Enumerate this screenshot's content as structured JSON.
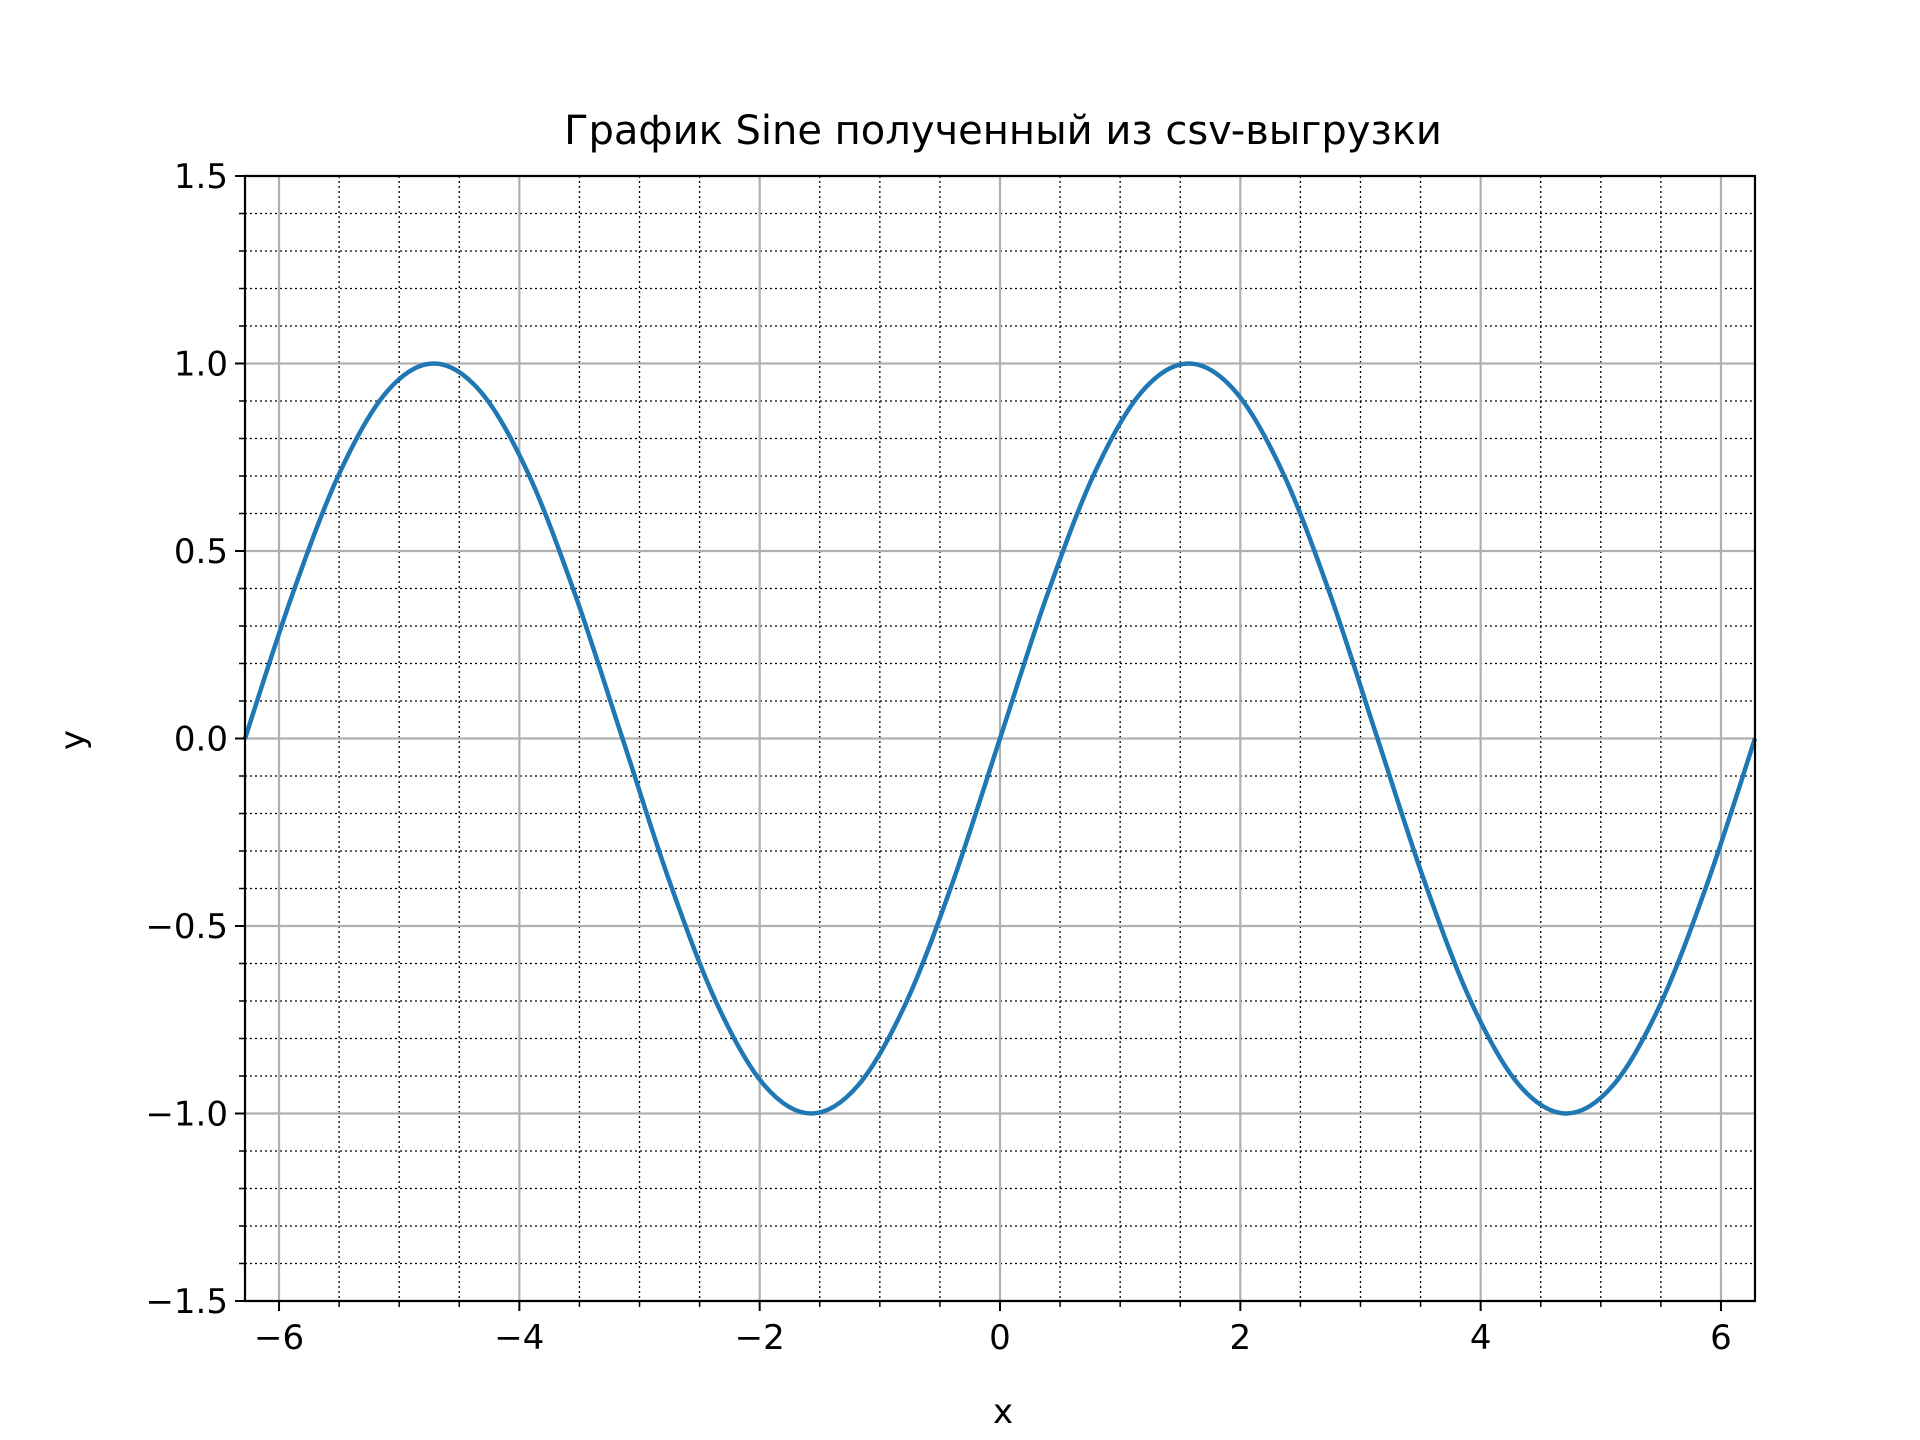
{
  "chart_data": {
    "type": "line",
    "title": "График Sine полученный из csv-выгрузки",
    "xlabel": "x",
    "ylabel": "y",
    "xlim": [
      -6.2832,
      6.2832
    ],
    "ylim": [
      -1.5,
      1.5
    ],
    "xticks": [
      -6,
      -4,
      -2,
      0,
      2,
      4,
      6
    ],
    "xtick_labels": [
      "−6",
      "−4",
      "−2",
      "0",
      "2",
      "4",
      "6"
    ],
    "yticks": [
      -1.5,
      -1.0,
      -0.5,
      0.0,
      0.5,
      1.0,
      1.5
    ],
    "ytick_labels": [
      "−1.5",
      "−1.0",
      "−0.5",
      "0.0",
      "0.5",
      "1.0",
      "1.5"
    ],
    "x_minor_step": 0.5,
    "y_minor_step": 0.1,
    "grid": {
      "major": true,
      "minor": true
    },
    "series": [
      {
        "color": "#1f77b4",
        "x": [
          -6.2832,
          -5.8905,
          -5.4978,
          -5.1051,
          -4.7124,
          -4.3197,
          -3.927,
          -3.5343,
          -3.1416,
          -2.7489,
          -2.3562,
          -1.9635,
          -1.5708,
          -1.1781,
          -0.7854,
          -0.3927,
          0.0,
          0.3927,
          0.7854,
          1.1781,
          1.5708,
          1.9635,
          2.3562,
          2.7489,
          3.1416,
          3.5343,
          3.927,
          4.3197,
          4.7124,
          5.1051,
          5.4978,
          5.8905,
          6.2832
        ],
        "y": [
          0.0,
          0.3827,
          0.7071,
          0.9239,
          1.0,
          0.9239,
          0.7071,
          0.3827,
          0.0,
          -0.3827,
          -0.7071,
          -0.9239,
          -1.0,
          -0.9239,
          -0.7071,
          -0.3827,
          0.0,
          0.3827,
          0.7071,
          0.9239,
          1.0,
          0.9239,
          0.7071,
          0.3827,
          0.0,
          -0.3827,
          -0.7071,
          -0.9239,
          -1.0,
          -0.9239,
          -0.7071,
          -0.3827,
          0.0
        ]
      }
    ]
  }
}
